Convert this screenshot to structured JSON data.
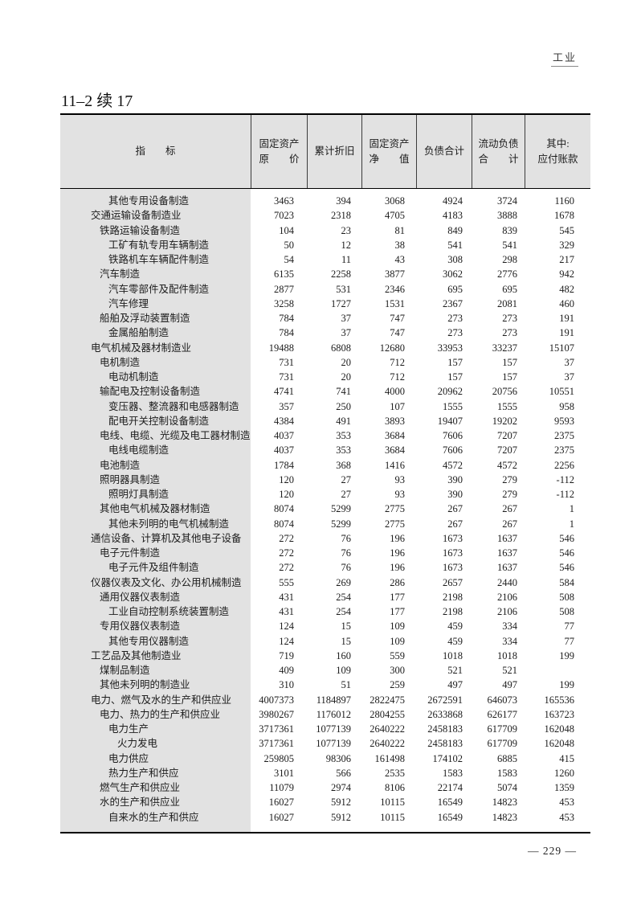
{
  "page": {
    "chapter_label": "工业",
    "table_title": "11–2 续 17",
    "page_number": "— 229 —"
  },
  "table": {
    "header": {
      "indicator_label": "指　　标",
      "columns": [
        {
          "lines": [
            "固定资产",
            "原　　价"
          ]
        },
        {
          "lines": [
            "累计折旧"
          ]
        },
        {
          "lines": [
            "固定资产",
            "净　　值"
          ]
        },
        {
          "lines": [
            "负债合计"
          ]
        },
        {
          "lines": [
            "流动负债",
            "合　　计"
          ]
        },
        {
          "lines": [
            "其中:",
            "应付账款"
          ]
        }
      ]
    },
    "rows": [
      {
        "label": "其他专用设备制造",
        "indent": 2,
        "values": [
          "3463",
          "394",
          "3068",
          "4924",
          "3724",
          "1160"
        ]
      },
      {
        "label": "交通运输设备制造业",
        "indent": 0,
        "values": [
          "7023",
          "2318",
          "4705",
          "4183",
          "3888",
          "1678"
        ]
      },
      {
        "label": "铁路运输设备制造",
        "indent": 1,
        "values": [
          "104",
          "23",
          "81",
          "849",
          "839",
          "545"
        ]
      },
      {
        "label": "工矿有轨专用车辆制造",
        "indent": 2,
        "values": [
          "50",
          "12",
          "38",
          "541",
          "541",
          "329"
        ]
      },
      {
        "label": "铁路机车车辆配件制造",
        "indent": 2,
        "values": [
          "54",
          "11",
          "43",
          "308",
          "298",
          "217"
        ]
      },
      {
        "label": "汽车制造",
        "indent": 1,
        "values": [
          "6135",
          "2258",
          "3877",
          "3062",
          "2776",
          "942"
        ]
      },
      {
        "label": "汽车零部件及配件制造",
        "indent": 2,
        "values": [
          "2877",
          "531",
          "2346",
          "695",
          "695",
          "482"
        ]
      },
      {
        "label": "汽车修理",
        "indent": 2,
        "values": [
          "3258",
          "1727",
          "1531",
          "2367",
          "2081",
          "460"
        ]
      },
      {
        "label": "船舶及浮动装置制造",
        "indent": 1,
        "values": [
          "784",
          "37",
          "747",
          "273",
          "273",
          "191"
        ]
      },
      {
        "label": "金属船舶制造",
        "indent": 2,
        "values": [
          "784",
          "37",
          "747",
          "273",
          "273",
          "191"
        ]
      },
      {
        "label": "电气机械及器材制造业",
        "indent": 0,
        "values": [
          "19488",
          "6808",
          "12680",
          "33953",
          "33237",
          "15107"
        ]
      },
      {
        "label": "电机制造",
        "indent": 1,
        "values": [
          "731",
          "20",
          "712",
          "157",
          "157",
          "37"
        ]
      },
      {
        "label": "电动机制造",
        "indent": 2,
        "values": [
          "731",
          "20",
          "712",
          "157",
          "157",
          "37"
        ]
      },
      {
        "label": "输配电及控制设备制造",
        "indent": 1,
        "values": [
          "4741",
          "741",
          "4000",
          "20962",
          "20756",
          "10551"
        ]
      },
      {
        "label": "变压器、整流器和电感器制造",
        "indent": 2,
        "values": [
          "357",
          "250",
          "107",
          "1555",
          "1555",
          "958"
        ]
      },
      {
        "label": "配电开关控制设备制造",
        "indent": 2,
        "values": [
          "4384",
          "491",
          "3893",
          "19407",
          "19202",
          "9593"
        ]
      },
      {
        "label": "电线、电缆、光缆及电工器材制造",
        "indent": 1,
        "values": [
          "4037",
          "353",
          "3684",
          "7606",
          "7207",
          "2375"
        ]
      },
      {
        "label": "电线电缆制造",
        "indent": 2,
        "values": [
          "4037",
          "353",
          "3684",
          "7606",
          "7207",
          "2375"
        ]
      },
      {
        "label": "电池制造",
        "indent": 1,
        "values": [
          "1784",
          "368",
          "1416",
          "4572",
          "4572",
          "2256"
        ]
      },
      {
        "label": "照明器具制造",
        "indent": 1,
        "values": [
          "120",
          "27",
          "93",
          "390",
          "279",
          "-112"
        ]
      },
      {
        "label": "照明灯具制造",
        "indent": 2,
        "values": [
          "120",
          "27",
          "93",
          "390",
          "279",
          "-112"
        ]
      },
      {
        "label": "其他电气机械及器材制造",
        "indent": 1,
        "values": [
          "8074",
          "5299",
          "2775",
          "267",
          "267",
          "1"
        ]
      },
      {
        "label": "其他未列明的电气机械制造",
        "indent": 2,
        "values": [
          "8074",
          "5299",
          "2775",
          "267",
          "267",
          "1"
        ]
      },
      {
        "label": "通信设备、计算机及其他电子设备",
        "indent": 0,
        "values": [
          "272",
          "76",
          "196",
          "1673",
          "1637",
          "546"
        ]
      },
      {
        "label": "电子元件制造",
        "indent": 1,
        "values": [
          "272",
          "76",
          "196",
          "1673",
          "1637",
          "546"
        ]
      },
      {
        "label": "电子元件及组件制造",
        "indent": 2,
        "values": [
          "272",
          "76",
          "196",
          "1673",
          "1637",
          "546"
        ]
      },
      {
        "label": "仪器仪表及文化、办公用机械制造",
        "indent": 0,
        "values": [
          "555",
          "269",
          "286",
          "2657",
          "2440",
          "584"
        ]
      },
      {
        "label": "通用仪器仪表制造",
        "indent": 1,
        "values": [
          "431",
          "254",
          "177",
          "2198",
          "2106",
          "508"
        ]
      },
      {
        "label": "工业自动控制系统装置制造",
        "indent": 2,
        "values": [
          "431",
          "254",
          "177",
          "2198",
          "2106",
          "508"
        ]
      },
      {
        "label": "专用仪器仪表制造",
        "indent": 1,
        "values": [
          "124",
          "15",
          "109",
          "459",
          "334",
          "77"
        ]
      },
      {
        "label": "其他专用仪器制造",
        "indent": 2,
        "values": [
          "124",
          "15",
          "109",
          "459",
          "334",
          "77"
        ]
      },
      {
        "label": "工艺品及其他制造业",
        "indent": 0,
        "values": [
          "719",
          "160",
          "559",
          "1018",
          "1018",
          "199"
        ]
      },
      {
        "label": "煤制品制造",
        "indent": 1,
        "values": [
          "409",
          "109",
          "300",
          "521",
          "521",
          ""
        ]
      },
      {
        "label": "其他未列明的制造业",
        "indent": 1,
        "values": [
          "310",
          "51",
          "259",
          "497",
          "497",
          "199"
        ]
      },
      {
        "label": "电力、燃气及水的生产和供应业",
        "indent": 0,
        "values": [
          "4007373",
          "1184897",
          "2822475",
          "2672591",
          "646073",
          "165536"
        ]
      },
      {
        "label": "电力、热力的生产和供应业",
        "indent": 1,
        "values": [
          "3980267",
          "1176012",
          "2804255",
          "2633868",
          "626177",
          "163723"
        ]
      },
      {
        "label": "电力生产",
        "indent": 2,
        "values": [
          "3717361",
          "1077139",
          "2640222",
          "2458183",
          "617709",
          "162048"
        ]
      },
      {
        "label": "火力发电",
        "indent": 3,
        "values": [
          "3717361",
          "1077139",
          "2640222",
          "2458183",
          "617709",
          "162048"
        ]
      },
      {
        "label": "电力供应",
        "indent": 2,
        "values": [
          "259805",
          "98306",
          "161498",
          "174102",
          "6885",
          "415"
        ]
      },
      {
        "label": "热力生产和供应",
        "indent": 2,
        "values": [
          "3101",
          "566",
          "2535",
          "1583",
          "1583",
          "1260"
        ]
      },
      {
        "label": "燃气生产和供应业",
        "indent": 1,
        "values": [
          "11079",
          "2974",
          "8106",
          "22174",
          "5074",
          "1359"
        ]
      },
      {
        "label": "水的生产和供应业",
        "indent": 1,
        "values": [
          "16027",
          "5912",
          "10115",
          "16549",
          "14823",
          "453"
        ]
      },
      {
        "label": "自来水的生产和供应",
        "indent": 2,
        "values": [
          "16027",
          "5912",
          "10115",
          "16549",
          "14823",
          "453"
        ]
      }
    ]
  }
}
